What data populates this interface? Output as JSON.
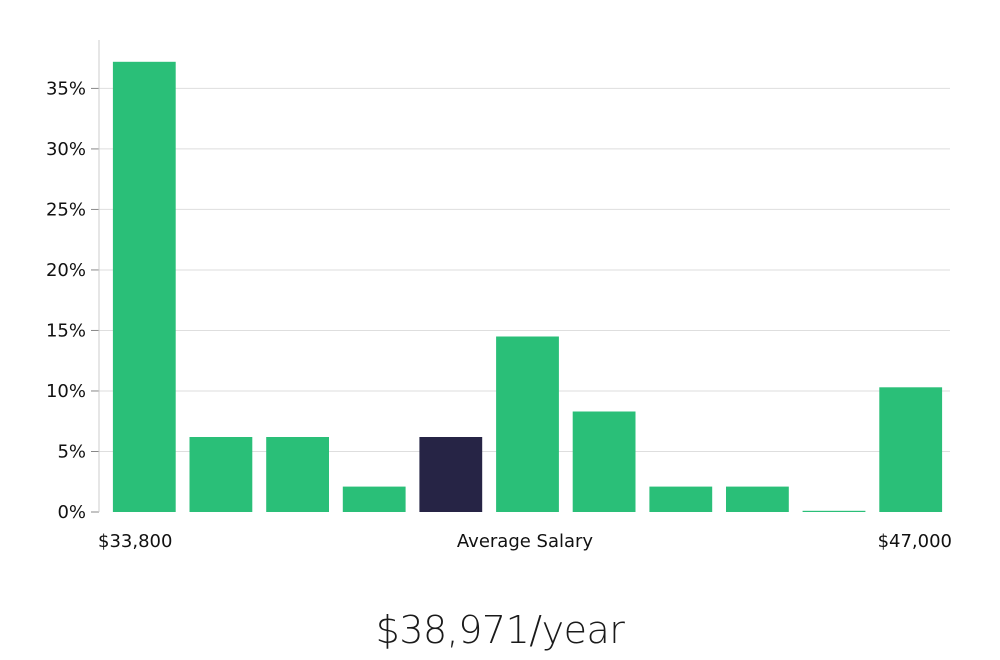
{
  "chart_data": {
    "type": "bar",
    "categories": [
      "",
      "",
      "",
      "",
      "",
      "",
      "",
      "",
      "",
      "",
      ""
    ],
    "values": [
      37.2,
      6.2,
      6.2,
      2.1,
      6.2,
      14.5,
      8.3,
      2.1,
      2.1,
      0.1,
      10.3
    ],
    "highlight_index": 4,
    "ylim": [
      0,
      39
    ],
    "yticks": [
      0,
      5,
      10,
      15,
      20,
      25,
      30,
      35
    ],
    "ytick_format": "{v}%",
    "grid": true,
    "colors": {
      "bar": "#2abf78",
      "highlight": "#262445",
      "grid": "#dedede",
      "axis": "#cccccc"
    },
    "x_labels": {
      "left": "$33,800",
      "center": "Average Salary",
      "right": "$47,000"
    }
  },
  "caption": "$38,971/year"
}
